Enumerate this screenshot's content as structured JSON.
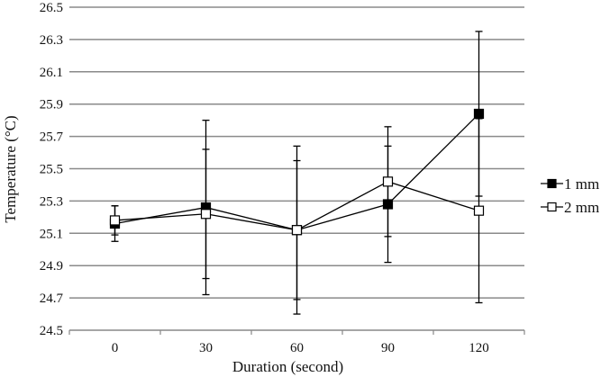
{
  "chart_data": {
    "type": "line",
    "title": "",
    "xlabel": "Duration (second)",
    "ylabel": "Temperature (°C)",
    "categories": [
      "0",
      "30",
      "60",
      "90",
      "120"
    ],
    "ylim": [
      24.5,
      26.5
    ],
    "yticks": [
      "24.5",
      "24.7",
      "24.9",
      "25.1",
      "25.3",
      "25.5",
      "25.7",
      "25.9",
      "26.1",
      "26.3",
      "26.5"
    ],
    "grid": true,
    "legend_position": "right",
    "series": [
      {
        "name": "1 mm",
        "marker": "filled-square",
        "values": [
          25.16,
          25.26,
          25.12,
          25.28,
          25.84
        ],
        "errors": [
          0.11,
          0.54,
          0.52,
          0.36,
          0.51
        ]
      },
      {
        "name": "2 mm",
        "marker": "open-square",
        "values": [
          25.18,
          25.22,
          25.12,
          25.42,
          25.24
        ],
        "errors": [
          0.09,
          0.4,
          0.43,
          0.34,
          0.57
        ]
      }
    ]
  }
}
